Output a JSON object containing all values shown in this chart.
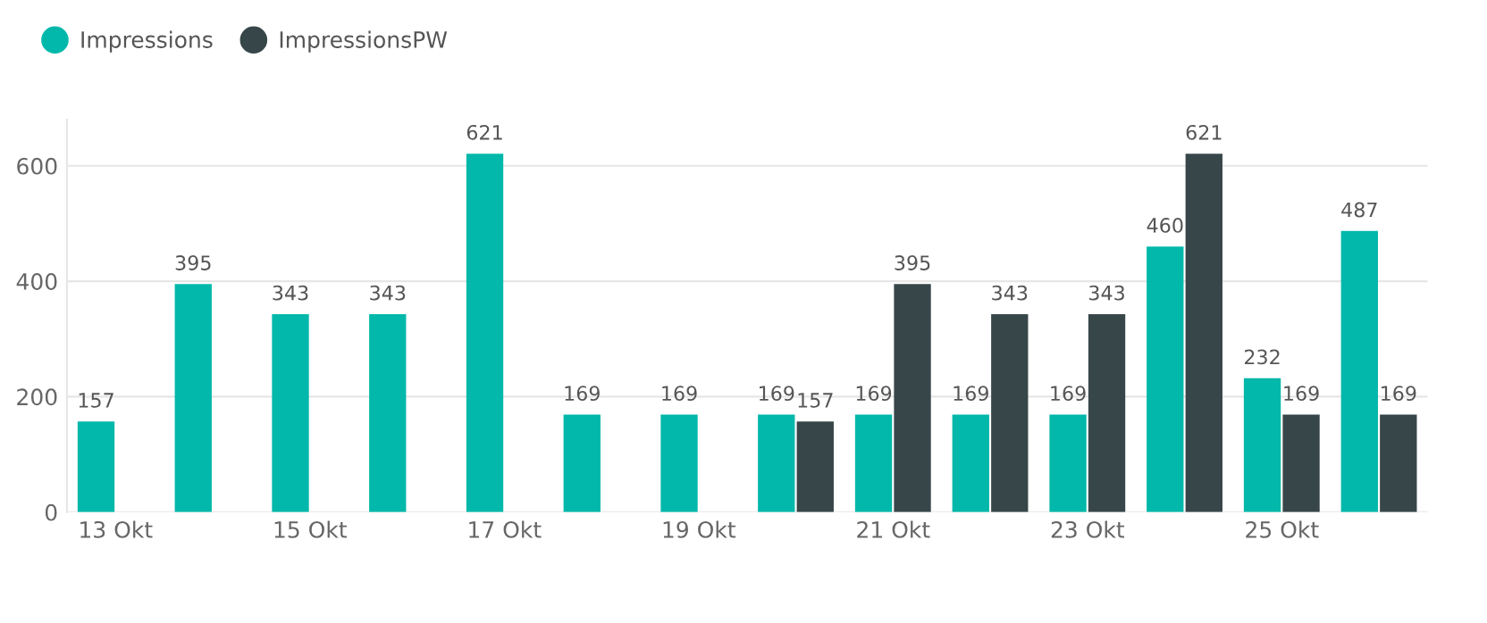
{
  "chart_data": {
    "type": "bar",
    "categories": [
      "13 Okt",
      null,
      "15 Okt",
      null,
      "17 Okt",
      null,
      "19 Okt",
      null,
      "21 Okt",
      null,
      "23 Okt",
      null,
      "25 Okt",
      null
    ],
    "series": [
      {
        "name": "Impressions",
        "color": "#01b8aa",
        "values": [
          157,
          395,
          343,
          343,
          621,
          169,
          169,
          169,
          169,
          169,
          169,
          460,
          232,
          487
        ]
      },
      {
        "name": "ImpressionsPW",
        "color": "#374649",
        "values": [
          null,
          null,
          null,
          null,
          null,
          null,
          null,
          157,
          395,
          343,
          343,
          621,
          169,
          169
        ]
      }
    ],
    "ylim": [
      0,
      680
    ],
    "yticks": [
      0,
      200,
      400,
      600
    ],
    "grid": "y",
    "legend": "top left",
    "data_labels": true
  }
}
